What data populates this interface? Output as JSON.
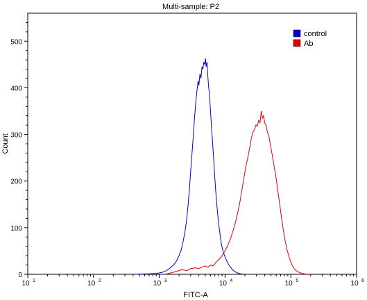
{
  "chart_data": {
    "type": "line",
    "title": "Multi-sample: P2",
    "xlabel": "FITC-A",
    "ylabel": "Count",
    "x_scale": "log",
    "xlim": [
      10,
      1000000
    ],
    "ylim": [
      0,
      560
    ],
    "y_ticks": [
      0,
      100,
      200,
      300,
      400,
      500
    ],
    "x_ticks": [
      {
        "base": "10",
        "exp": "1"
      },
      {
        "base": "10",
        "exp": "2"
      },
      {
        "base": "10",
        "exp": "3"
      },
      {
        "base": "10",
        "exp": "4"
      },
      {
        "base": "10",
        "exp": "5"
      },
      {
        "base": "10",
        "exp": "6"
      }
    ],
    "legend_position": "top-right",
    "grid": false,
    "series": [
      {
        "name": "control",
        "color": "#0000cc",
        "points": [
          [
            400,
            0
          ],
          [
            700,
            1
          ],
          [
            900,
            2
          ],
          [
            1100,
            4
          ],
          [
            1300,
            8
          ],
          [
            1500,
            15
          ],
          [
            1700,
            22
          ],
          [
            1850,
            30
          ],
          [
            2000,
            40
          ],
          [
            2150,
            52
          ],
          [
            2300,
            70
          ],
          [
            2450,
            90
          ],
          [
            2600,
            115
          ],
          [
            2750,
            150
          ],
          [
            2900,
            190
          ],
          [
            3000,
            220
          ],
          [
            3150,
            260
          ],
          [
            3300,
            300
          ],
          [
            3450,
            340
          ],
          [
            3600,
            370
          ],
          [
            3750,
            395
          ],
          [
            3900,
            415
          ],
          [
            4000,
            405
          ],
          [
            4150,
            430
          ],
          [
            4300,
            420
          ],
          [
            4450,
            445
          ],
          [
            4600,
            440
          ],
          [
            4750,
            455
          ],
          [
            4900,
            450
          ],
          [
            5050,
            463
          ],
          [
            5150,
            445
          ],
          [
            5300,
            455
          ],
          [
            5450,
            430
          ],
          [
            5600,
            405
          ],
          [
            5800,
            385
          ],
          [
            6000,
            350
          ],
          [
            6200,
            320
          ],
          [
            6450,
            285
          ],
          [
            6700,
            250
          ],
          [
            7000,
            205
          ],
          [
            7300,
            170
          ],
          [
            7650,
            135
          ],
          [
            8000,
            108
          ],
          [
            8400,
            85
          ],
          [
            8800,
            65
          ],
          [
            9300,
            50
          ],
          [
            9800,
            40
          ],
          [
            10500,
            30
          ],
          [
            11200,
            22
          ],
          [
            12000,
            16
          ],
          [
            13000,
            10
          ],
          [
            14000,
            6
          ],
          [
            15500,
            3
          ],
          [
            17000,
            1
          ],
          [
            20000,
            0
          ]
        ]
      },
      {
        "name": "Ab",
        "color": "#dd0000",
        "points": [
          [
            1200,
            0
          ],
          [
            1500,
            3
          ],
          [
            1800,
            6
          ],
          [
            2200,
            10
          ],
          [
            2600,
            8
          ],
          [
            3000,
            12
          ],
          [
            3500,
            14
          ],
          [
            4000,
            12
          ],
          [
            4500,
            16
          ],
          [
            5000,
            18
          ],
          [
            5500,
            15
          ],
          [
            6000,
            20
          ],
          [
            6600,
            18
          ],
          [
            7200,
            25
          ],
          [
            7800,
            30
          ],
          [
            8500,
            35
          ],
          [
            9200,
            42
          ],
          [
            10000,
            50
          ],
          [
            11000,
            62
          ],
          [
            12000,
            75
          ],
          [
            13000,
            90
          ],
          [
            14000,
            105
          ],
          [
            15000,
            122
          ],
          [
            16000,
            140
          ],
          [
            17000,
            158
          ],
          [
            18000,
            180
          ],
          [
            19000,
            200
          ],
          [
            20000,
            218
          ],
          [
            21000,
            235
          ],
          [
            22000,
            248
          ],
          [
            23000,
            262
          ],
          [
            24000,
            275
          ],
          [
            25000,
            290
          ],
          [
            26500,
            305
          ],
          [
            28000,
            310
          ],
          [
            29500,
            320
          ],
          [
            31000,
            318
          ],
          [
            32500,
            330
          ],
          [
            34000,
            325
          ],
          [
            35500,
            350
          ],
          [
            37000,
            335
          ],
          [
            38500,
            340
          ],
          [
            40000,
            325
          ],
          [
            42000,
            320
          ],
          [
            44000,
            305
          ],
          [
            46000,
            300
          ],
          [
            48000,
            285
          ],
          [
            50000,
            270
          ],
          [
            53000,
            250
          ],
          [
            56000,
            230
          ],
          [
            60000,
            205
          ],
          [
            64000,
            175
          ],
          [
            68000,
            150
          ],
          [
            72000,
            122
          ],
          [
            77000,
            95
          ],
          [
            82000,
            72
          ],
          [
            88000,
            52
          ],
          [
            95000,
            35
          ],
          [
            103000,
            22
          ],
          [
            112000,
            12
          ],
          [
            125000,
            6
          ],
          [
            140000,
            3
          ],
          [
            160000,
            1
          ],
          [
            180000,
            0
          ]
        ]
      }
    ]
  }
}
